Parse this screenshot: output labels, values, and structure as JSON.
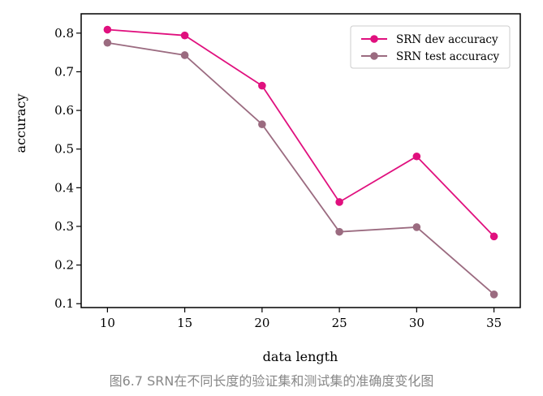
{
  "chart_data": {
    "type": "line",
    "x": [
      10,
      15,
      20,
      25,
      30,
      35
    ],
    "series": [
      {
        "name": "SRN dev accuracy",
        "color": "#e0107e",
        "values": [
          0.809,
          0.794,
          0.664,
          0.363,
          0.481,
          0.274
        ]
      },
      {
        "name": "SRN test accuracy",
        "color": "#9b6b80",
        "values": [
          0.775,
          0.743,
          0.564,
          0.286,
          0.298,
          0.124
        ]
      }
    ],
    "xlabel": "data length",
    "ylabel": "accuracy",
    "xlim": [
      8.3,
      36.7
    ],
    "ylim": [
      0.09,
      0.85
    ],
    "xticks": [
      10,
      15,
      20,
      25,
      30,
      35
    ],
    "yticks": [
      0.1,
      0.2,
      0.3,
      0.4,
      0.5,
      0.6,
      0.7,
      0.8
    ],
    "ytick_labels": [
      "0.1",
      "0.2",
      "0.3",
      "0.4",
      "0.5",
      "0.6",
      "0.7",
      "0.8"
    ],
    "grid": false,
    "legend_position": "top-right"
  },
  "caption": "图6.7 SRN在不同长度的验证集和测试集的准确度变化图"
}
